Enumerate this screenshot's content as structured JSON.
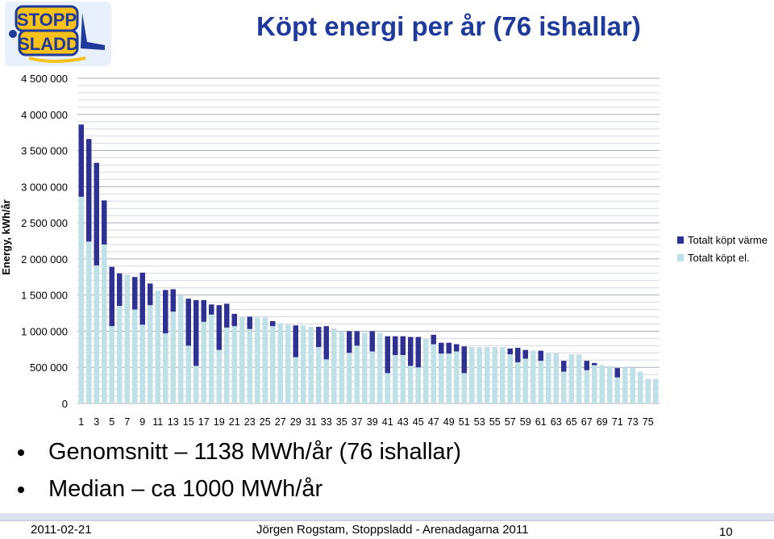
{
  "title": "Köpt energi per år (76 ishallar)",
  "logo": {
    "line1": "STOPP",
    "line2": "SLADD"
  },
  "bullets": [
    "Genomsnitt – 1138 MWh/år (76 ishallar)",
    "Median – ca 1000 MWh/år"
  ],
  "footer": {
    "date": "2011-02-21",
    "center": "Jörgen Rogstam,  Stoppsladd - Arenadagarna 2011",
    "page": "10"
  },
  "colors": {
    "el": "#bfe0e6",
    "varme": "#2e3192",
    "title": "#1f3a9a"
  },
  "chart_data": {
    "type": "bar",
    "stacked": true,
    "ylabel": "Energy, kWh/år",
    "ylim": [
      0,
      4500000
    ],
    "yticks": [
      0,
      500000,
      1000000,
      1500000,
      2000000,
      2500000,
      3000000,
      3500000,
      4000000,
      4500000
    ],
    "ytick_labels": [
      "0",
      "500 000",
      "1 000 000",
      "1 500 000",
      "2 000 000",
      "2 500 000",
      "3 000 000",
      "3 500 000",
      "4 000 000",
      "4 500 000"
    ],
    "xtick_labels": [
      "1",
      "3",
      "5",
      "7",
      "9",
      "11",
      "13",
      "15",
      "17",
      "19",
      "21",
      "23",
      "25",
      "27",
      "29",
      "31",
      "33",
      "35",
      "37",
      "39",
      "41",
      "43",
      "45",
      "47",
      "49",
      "51",
      "53",
      "55",
      "57",
      "59",
      "61",
      "63",
      "65",
      "67",
      "69",
      "71",
      "73",
      "75"
    ],
    "categories": [
      1,
      2,
      3,
      4,
      5,
      6,
      7,
      8,
      9,
      10,
      11,
      12,
      13,
      14,
      15,
      16,
      17,
      18,
      19,
      20,
      21,
      22,
      23,
      24,
      25,
      26,
      27,
      28,
      29,
      30,
      31,
      32,
      33,
      34,
      35,
      36,
      37,
      38,
      39,
      40,
      41,
      42,
      43,
      44,
      45,
      46,
      47,
      48,
      49,
      50,
      51,
      52,
      53,
      54,
      55,
      56,
      57,
      58,
      59,
      60,
      61,
      62,
      63,
      64,
      65,
      66,
      67,
      68,
      69,
      70,
      71,
      72,
      73,
      74,
      75,
      76
    ],
    "legend_position": "right",
    "series": [
      {
        "name": "Totalt köpt el.",
        "values": [
          2860000,
          2240000,
          1910000,
          2200000,
          1070000,
          1350000,
          1780000,
          1300000,
          1090000,
          1360000,
          1560000,
          970000,
          1270000,
          1490000,
          800000,
          520000,
          1130000,
          1230000,
          740000,
          1050000,
          1070000,
          1200000,
          1030000,
          1190000,
          1190000,
          1070000,
          1110000,
          1090000,
          640000,
          1080000,
          1060000,
          780000,
          610000,
          1040000,
          1000000,
          700000,
          800000,
          980000,
          720000,
          980000,
          420000,
          670000,
          670000,
          520000,
          500000,
          890000,
          820000,
          690000,
          690000,
          720000,
          420000,
          780000,
          780000,
          780000,
          780000,
          780000,
          680000,
          570000,
          620000,
          730000,
          590000,
          700000,
          700000,
          440000,
          680000,
          680000,
          460000,
          530000,
          530000,
          520000,
          360000,
          500000,
          490000,
          440000,
          340000,
          340000
        ]
      },
      {
        "name": "Totalt köpt värme",
        "values": [
          1000000,
          1420000,
          1420000,
          610000,
          820000,
          450000,
          0,
          450000,
          720000,
          300000,
          0,
          600000,
          310000,
          0,
          650000,
          910000,
          300000,
          140000,
          620000,
          330000,
          170000,
          0,
          170000,
          0,
          0,
          70000,
          0,
          0,
          440000,
          0,
          0,
          280000,
          460000,
          0,
          0,
          300000,
          200000,
          0,
          280000,
          0,
          510000,
          260000,
          260000,
          400000,
          420000,
          0,
          130000,
          150000,
          150000,
          100000,
          370000,
          0,
          0,
          0,
          0,
          0,
          80000,
          200000,
          120000,
          0,
          140000,
          0,
          0,
          150000,
          0,
          0,
          130000,
          30000,
          0,
          0,
          130000,
          0,
          0,
          0,
          0,
          0
        ]
      }
    ]
  }
}
